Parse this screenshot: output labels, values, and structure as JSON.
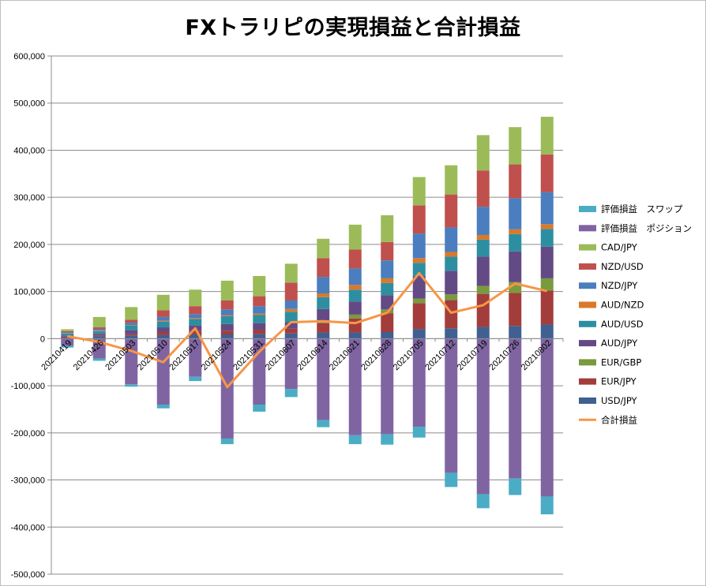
{
  "chart_data": {
    "type": "bar",
    "stacked": true,
    "title": "FXトラリピの実現損益と合計損益",
    "categories": [
      "20210419",
      "20210426",
      "20210503",
      "20210510",
      "20210517",
      "20210524",
      "20210531",
      "20210607",
      "20210614",
      "20210621",
      "20210628",
      "20210705",
      "20210712",
      "20210719",
      "20210726",
      "20210802"
    ],
    "ylim": [
      -500000,
      600000
    ],
    "yticks": [
      "600,000",
      "500,000",
      "400,000",
      "300,000",
      "200,000",
      "100,000",
      "0",
      "-100,000",
      "-200,000",
      "-300,000",
      "-400,000",
      "-500,000"
    ],
    "yticks_values": [
      600000,
      500000,
      400000,
      300000,
      200000,
      100000,
      0,
      -100000,
      -200000,
      -300000,
      -400000,
      -500000
    ],
    "grid": true,
    "legend_position": "right",
    "series": [
      {
        "name": "USD/JPY",
        "color": "#3f6091",
        "values": [
          3000,
          5000,
          7000,
          8000,
          9000,
          9000,
          10000,
          11000,
          13000,
          13000,
          14000,
          20000,
          22000,
          25000,
          27000,
          30000
        ]
      },
      {
        "name": "EUR/JPY",
        "color": "#a33d3b",
        "values": [
          2000,
          2000,
          3000,
          6000,
          7000,
          8000,
          9000,
          10000,
          20000,
          30000,
          40000,
          55000,
          60000,
          70000,
          70000,
          72000
        ]
      },
      {
        "name": "EUR/GBP",
        "color": "#7a9a3e",
        "values": [
          0,
          0,
          0,
          0,
          0,
          0,
          0,
          0,
          5000,
          8000,
          8000,
          10000,
          12000,
          17000,
          23000,
          26000
        ]
      },
      {
        "name": "AUD/JPY",
        "color": "#644a84",
        "values": [
          2000,
          3000,
          8000,
          10000,
          12000,
          14000,
          14000,
          14000,
          25000,
          28000,
          30000,
          48000,
          50000,
          62000,
          65000,
          67000
        ]
      },
      {
        "name": "AUD/USD",
        "color": "#2e8ea1",
        "values": [
          4000,
          6000,
          10000,
          12000,
          14000,
          17000,
          17000,
          22000,
          25000,
          25000,
          26000,
          28000,
          30000,
          36000,
          37000,
          38000
        ]
      },
      {
        "name": "AUD/NZD",
        "color": "#d9792a",
        "values": [
          1000,
          1000,
          1000,
          2000,
          2000,
          2000,
          3000,
          6000,
          8000,
          10000,
          10000,
          10000,
          10000,
          10000,
          10000,
          10000
        ]
      },
      {
        "name": "NZD/JPY",
        "color": "#4a7ebf",
        "values": [
          2000,
          3000,
          5000,
          8000,
          8000,
          12000,
          16000,
          18000,
          35000,
          35000,
          38000,
          52000,
          52000,
          60000,
          66000,
          68000
        ]
      },
      {
        "name": "NZD/USD",
        "color": "#c0504d",
        "values": [
          2000,
          4000,
          6000,
          14000,
          17000,
          19000,
          21000,
          38000,
          40000,
          40000,
          39000,
          60000,
          70000,
          77000,
          72000,
          80000
        ]
      },
      {
        "name": "CAD/JPY",
        "color": "#9bbb59",
        "values": [
          4000,
          22000,
          27000,
          33000,
          35000,
          42000,
          43000,
          40000,
          41000,
          53000,
          57000,
          60000,
          62000,
          75000,
          79000,
          80000
        ]
      },
      {
        "name": "評価損益　ポジション",
        "color": "#8064a2",
        "values": [
          -15000,
          -42000,
          -97000,
          -140000,
          -81000,
          -212000,
          -140000,
          -107000,
          -173000,
          -205000,
          -203000,
          -187000,
          -285000,
          -330000,
          -297000,
          -335000
        ]
      },
      {
        "name": "評価損益　スワップ",
        "color": "#4bacc6",
        "values": [
          -4000,
          -5000,
          -5000,
          -8000,
          -9000,
          -12000,
          -15000,
          -17000,
          -15000,
          -19000,
          -22000,
          -23000,
          -30000,
          -30000,
          -35000,
          -38000
        ]
      }
    ],
    "line_series": {
      "name": "合計損益",
      "color": "#f79646",
      "values": [
        5000,
        -7000,
        -26000,
        -50000,
        22000,
        -103000,
        -28000,
        35000,
        37000,
        33000,
        55000,
        139000,
        55000,
        71000,
        117000,
        101000
      ]
    },
    "legend_order": [
      "評価損益　スワップ",
      "評価損益　ポジション",
      "CAD/JPY",
      "NZD/USD",
      "NZD/JPY",
      "AUD/NZD",
      "AUD/USD",
      "AUD/JPY",
      "EUR/GBP",
      "EUR/JPY",
      "USD/JPY",
      "合計損益"
    ]
  }
}
